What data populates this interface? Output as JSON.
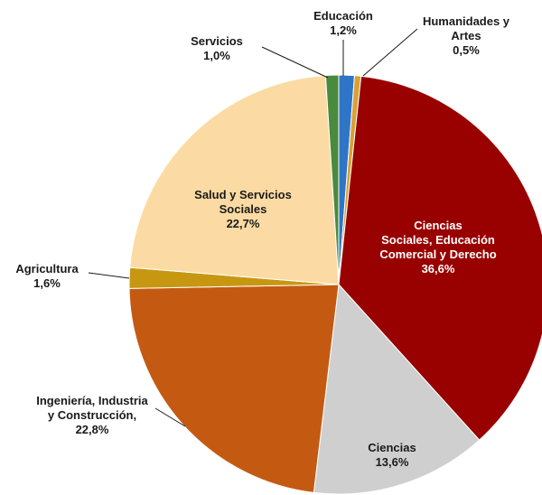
{
  "chart_data": {
    "type": "pie",
    "title": "",
    "start_angle_deg": 0,
    "direction": "clockwise",
    "slices": [
      {
        "name": "Educación",
        "label_lines": [
          "Educación",
          "1,2%"
        ],
        "value": 1.2,
        "value_label": "1,2%",
        "color": "#2e75c8"
      },
      {
        "name": "Humanidades y Artes",
        "label_lines": [
          "Humanidades y",
          "Artes",
          "0,5%"
        ],
        "value": 0.5,
        "value_label": "0,5%",
        "color": "#d8a037"
      },
      {
        "name": "Ciencias Sociales, Educación Comercial y Derecho",
        "label_lines": [
          "Ciencias",
          "Sociales, Educación",
          "Comercial y Derecho",
          "36,6%"
        ],
        "value": 36.6,
        "value_label": "36,6%",
        "color": "#990000"
      },
      {
        "name": "Ciencias",
        "label_lines": [
          "Ciencias",
          "13,6%"
        ],
        "value": 13.6,
        "value_label": "13,6%",
        "color": "#d0cfd0"
      },
      {
        "name": "Ingeniería, Industria y Construcción",
        "label_lines": [
          "Ingeniería, Industria",
          "y Construcción,",
          "22,8%"
        ],
        "value": 22.8,
        "value_label": "22,8%",
        "color": "#c45a12"
      },
      {
        "name": "Agricultura",
        "label_lines": [
          "Agricultura",
          "1,6%"
        ],
        "value": 1.6,
        "value_label": "1,6%",
        "color": "#c89712"
      },
      {
        "name": "Salud y Servicios Sociales",
        "label_lines": [
          "Salud y Servicios",
          "Sociales",
          "22,7%"
        ],
        "value": 22.7,
        "value_label": "22,7%",
        "color": "#fbdba3"
      },
      {
        "name": "Servicios",
        "label_lines": [
          "Servicios",
          "1,0%"
        ],
        "value": 1.0,
        "value_label": "1,0%",
        "color": "#4a8a3c"
      }
    ]
  }
}
